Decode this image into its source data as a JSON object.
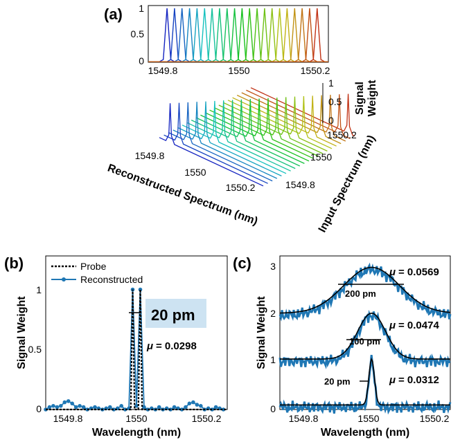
{
  "chart_data": [
    {
      "panel": "(a)",
      "type": "line",
      "title": "",
      "x_ticks": [
        "1549.8",
        "1550",
        "1550.2"
      ],
      "y_ticks": [
        "0",
        "0.5",
        "1"
      ],
      "top_plot_y_ticks": [
        "0",
        "0.5",
        "1"
      ],
      "xlabel": "Reconstructed  Spectrum (nm)",
      "ylabel": "Input Spectrum (nm)",
      "zlabel_line1": "Signal",
      "zlabel_line2": "Weight",
      "input_ticks": [
        "1549.8",
        "1550",
        "1550.2"
      ],
      "num_channels": 21,
      "peak_wavelengths_nm": [
        1549.8,
        1549.82,
        1549.84,
        1549.86,
        1549.88,
        1549.9,
        1549.92,
        1549.94,
        1549.96,
        1549.98,
        1550.0,
        1550.02,
        1550.04,
        1550.06,
        1550.08,
        1550.1,
        1550.12,
        1550.14,
        1550.16,
        1550.18,
        1550.2
      ],
      "xlim": [
        1549.75,
        1550.23
      ],
      "ylim": [
        0,
        1.05
      ]
    },
    {
      "panel": "(b)",
      "type": "line",
      "xlabel": "Wavelength (nm)",
      "ylabel": "Signal Weight",
      "x_ticks": [
        "1549.8",
        "1550",
        "1550.2"
      ],
      "y_ticks": [
        "0",
        "0.5",
        "1"
      ],
      "xlim": [
        1549.75,
        1550.23
      ],
      "ylim": [
        0,
        1.28
      ],
      "legend": [
        "Probe",
        "Reconstructed"
      ],
      "series": [
        {
          "name": "Reconstructed",
          "x": [
            1549.75,
            1549.76,
            1549.77,
            1549.78,
            1549.79,
            1549.8,
            1549.81,
            1549.82,
            1549.83,
            1549.84,
            1549.85,
            1549.86,
            1549.87,
            1549.88,
            1549.89,
            1549.9,
            1549.91,
            1549.92,
            1549.93,
            1549.94,
            1549.95,
            1549.96,
            1549.97,
            1549.98,
            1549.99,
            1550.0,
            1550.01,
            1550.02,
            1550.03,
            1550.04,
            1550.05,
            1550.06,
            1550.07,
            1550.08,
            1550.09,
            1550.1,
            1550.11,
            1550.12,
            1550.13,
            1550.14,
            1550.15,
            1550.16,
            1550.17,
            1550.18,
            1550.19,
            1550.2,
            1550.21,
            1550.22
          ],
          "values": [
            0.0,
            0.02,
            0.03,
            0.02,
            0.03,
            0.06,
            0.07,
            0.05,
            0.02,
            0.03,
            0.02,
            0.0,
            0.01,
            0.02,
            0.01,
            0.0,
            0.01,
            0.02,
            0.0,
            0.01,
            0.03,
            0.0,
            0.01,
            1.0,
            0.03,
            1.0,
            0.02,
            0.0,
            0.01,
            0.0,
            0.02,
            0.0,
            0.01,
            0.0,
            0.02,
            0.01,
            0.0,
            0.02,
            0.05,
            0.06,
            0.04,
            0.03,
            0.0,
            0.01,
            0.0,
            0.02,
            0.01,
            0.0
          ]
        },
        {
          "name": "Probe",
          "x": [
            1549.75,
            1549.975,
            1549.98,
            1549.985,
            1549.995,
            1550.0,
            1550.005,
            1550.23
          ],
          "values": [
            0,
            0,
            1.0,
            0,
            0,
            1.0,
            0,
            0
          ]
        }
      ],
      "annotations": {
        "width_label": "20 pm",
        "mu_text": "= 0.0298",
        "mu_symbol": "μ"
      }
    },
    {
      "panel": "(c)",
      "type": "line",
      "xlabel": "Wavelength (nm)",
      "ylabel": "Signal Weight",
      "x_ticks": [
        "1549.8",
        "1550",
        "1550.2"
      ],
      "y_ticks": [
        "0",
        "1",
        "2",
        "3"
      ],
      "xlim": [
        1549.72,
        1550.24
      ],
      "ylim": [
        -0.05,
        3.3
      ],
      "series": [
        {
          "name": "20 pm",
          "width_pm": 20,
          "offset": 0,
          "mu": "= 0.0312"
        },
        {
          "name": "100 pm",
          "width_pm": 100,
          "offset": 1,
          "mu": "= 0.0474"
        },
        {
          "name": "200 pm",
          "width_pm": 200,
          "offset": 2,
          "mu": "= 0.0569"
        }
      ],
      "width_labels": [
        "20 pm",
        "100 pm",
        "200 pm"
      ],
      "mu_symbol": "μ"
    }
  ],
  "colors": {
    "reconstructed": "#1f77b4",
    "probe": "#000000",
    "highlight_box": "#cde3f2"
  }
}
